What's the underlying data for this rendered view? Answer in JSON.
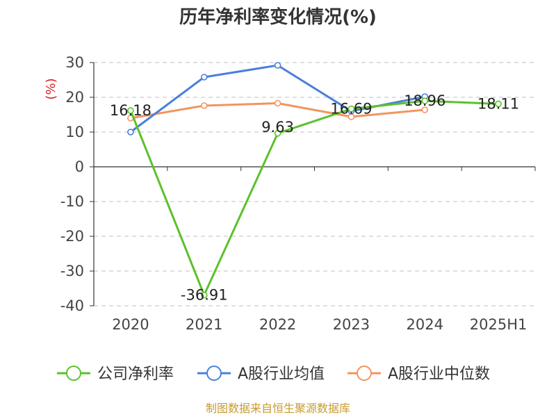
{
  "chart_data": {
    "type": "line",
    "title": "历年净利率变化情况(%)",
    "ylabel": "(%)",
    "ylim": [
      -40,
      30
    ],
    "yticks": [
      30,
      20,
      10,
      0,
      -10,
      -20,
      -30,
      -40
    ],
    "grid": true,
    "categories": [
      "2020",
      "2021",
      "2022",
      "2023",
      "2024",
      "2025H1"
    ],
    "series": [
      {
        "name": "公司净利率",
        "color": "#5bc12a",
        "values": [
          16.18,
          -36.91,
          9.63,
          16.69,
          18.96,
          18.11
        ],
        "labels": [
          "16.18",
          "-36.91",
          "9.63",
          "16.69",
          "18.96",
          "18.11"
        ]
      },
      {
        "name": "A股行业均值",
        "color": "#4a7fdc",
        "values": [
          10.0,
          25.8,
          29.2,
          16.0,
          20.2,
          null
        ]
      },
      {
        "name": "A股行业中位数",
        "color": "#f4945c",
        "values": [
          14.0,
          17.6,
          18.3,
          14.4,
          16.4,
          null
        ]
      }
    ],
    "legend": "bottom",
    "source": "制图数据来自恒生聚源数据库"
  }
}
